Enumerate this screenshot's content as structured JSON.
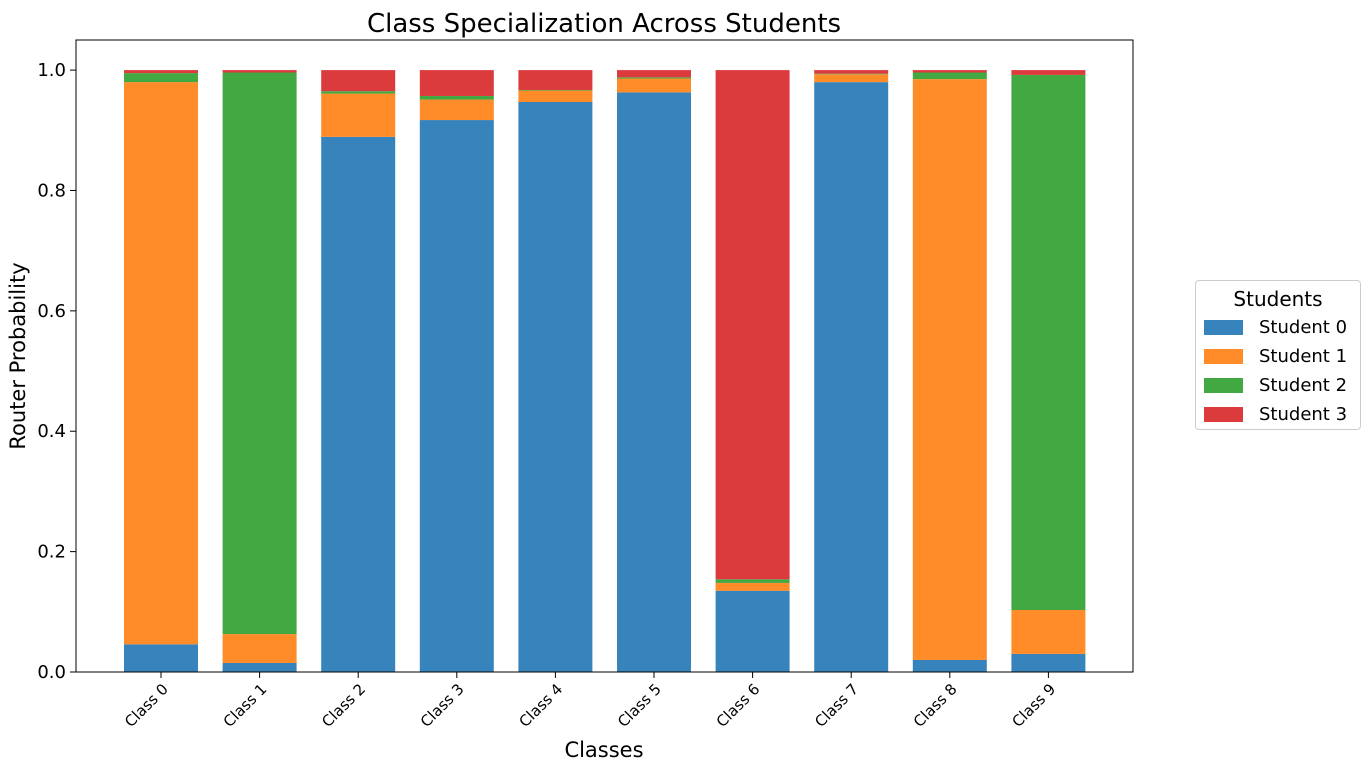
{
  "chart_data": {
    "type": "bar",
    "stacked": true,
    "title": "Class Specialization Across Students",
    "xlabel": "Classes",
    "ylabel": "Router Probability",
    "ylim": [
      0,
      1.05
    ],
    "yticks": [
      "0.0",
      "0.2",
      "0.4",
      "0.6",
      "0.8",
      "1.0"
    ],
    "categories": [
      "Class 0",
      "Class 1",
      "Class 2",
      "Class 3",
      "Class 4",
      "Class 5",
      "Class 6",
      "Class 7",
      "Class 8",
      "Class 9"
    ],
    "series": [
      {
        "name": "Student 0",
        "color": "#3784bc",
        "values": [
          0.046,
          0.015,
          0.889,
          0.917,
          0.947,
          0.963,
          0.135,
          0.98,
          0.02,
          0.03
        ]
      },
      {
        "name": "Student 1",
        "color": "#ff8c29",
        "values": [
          0.934,
          0.048,
          0.072,
          0.034,
          0.019,
          0.023,
          0.013,
          0.013,
          0.965,
          0.073
        ]
      },
      {
        "name": "Student 2",
        "color": "#42a842",
        "values": [
          0.015,
          0.933,
          0.004,
          0.006,
          0.001,
          0.002,
          0.006,
          0.001,
          0.011,
          0.889
        ]
      },
      {
        "name": "Student 3",
        "color": "#db3b3d",
        "values": [
          0.005,
          0.004,
          0.035,
          0.043,
          0.033,
          0.012,
          0.846,
          0.006,
          0.004,
          0.008
        ]
      }
    ],
    "legend": {
      "title": "Students",
      "position": "right, outside plot"
    },
    "grid": false
  }
}
